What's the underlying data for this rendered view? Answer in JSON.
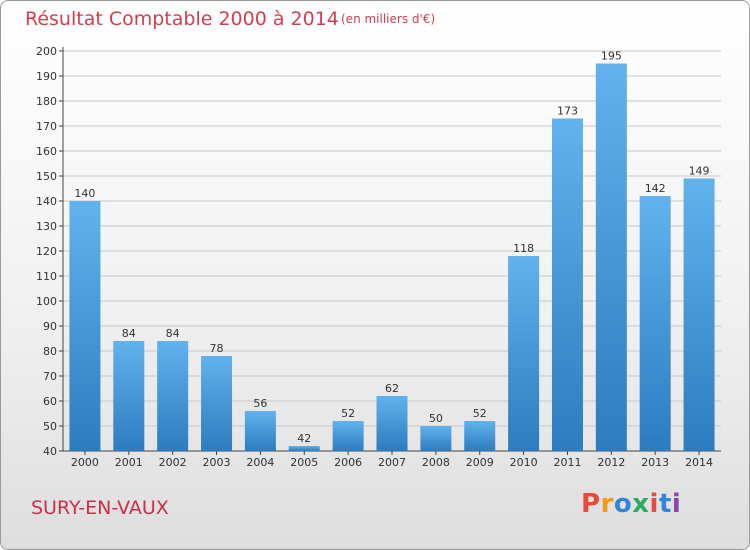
{
  "header": {
    "title": "Résultat Comptable 2000 à 2014",
    "unit": "(en milliers d'€)"
  },
  "footer": {
    "commune": "SURY-EN-VAUX",
    "logo": "Proxiti",
    "logo_colors": [
      "#e84b3c",
      "#f39c12",
      "#2e86de",
      "#27ae60",
      "#e84b3c",
      "#2e86de",
      "#8e44ad"
    ]
  },
  "colors": {
    "bar_light": "#62b2ee",
    "bar_dark": "#2f7fc2",
    "title": "#d13f4e",
    "grid": "#c8c8c8"
  },
  "chart_data": {
    "type": "bar",
    "title": "Résultat Comptable 2000 à 2014",
    "subtitle": "(en milliers d'€)",
    "categories": [
      "2000",
      "2001",
      "2002",
      "2003",
      "2004",
      "2005",
      "2006",
      "2007",
      "2008",
      "2009",
      "2010",
      "2011",
      "2012",
      "2013",
      "2014"
    ],
    "values": [
      140,
      84,
      84,
      78,
      56,
      42,
      52,
      62,
      50,
      52,
      118,
      173,
      195,
      142,
      149
    ],
    "ylim": [
      40,
      200
    ],
    "yticks": [
      40,
      50,
      60,
      70,
      80,
      90,
      100,
      110,
      120,
      130,
      140,
      150,
      160,
      170,
      180,
      190,
      200
    ],
    "grid": true,
    "data_labels": true
  }
}
